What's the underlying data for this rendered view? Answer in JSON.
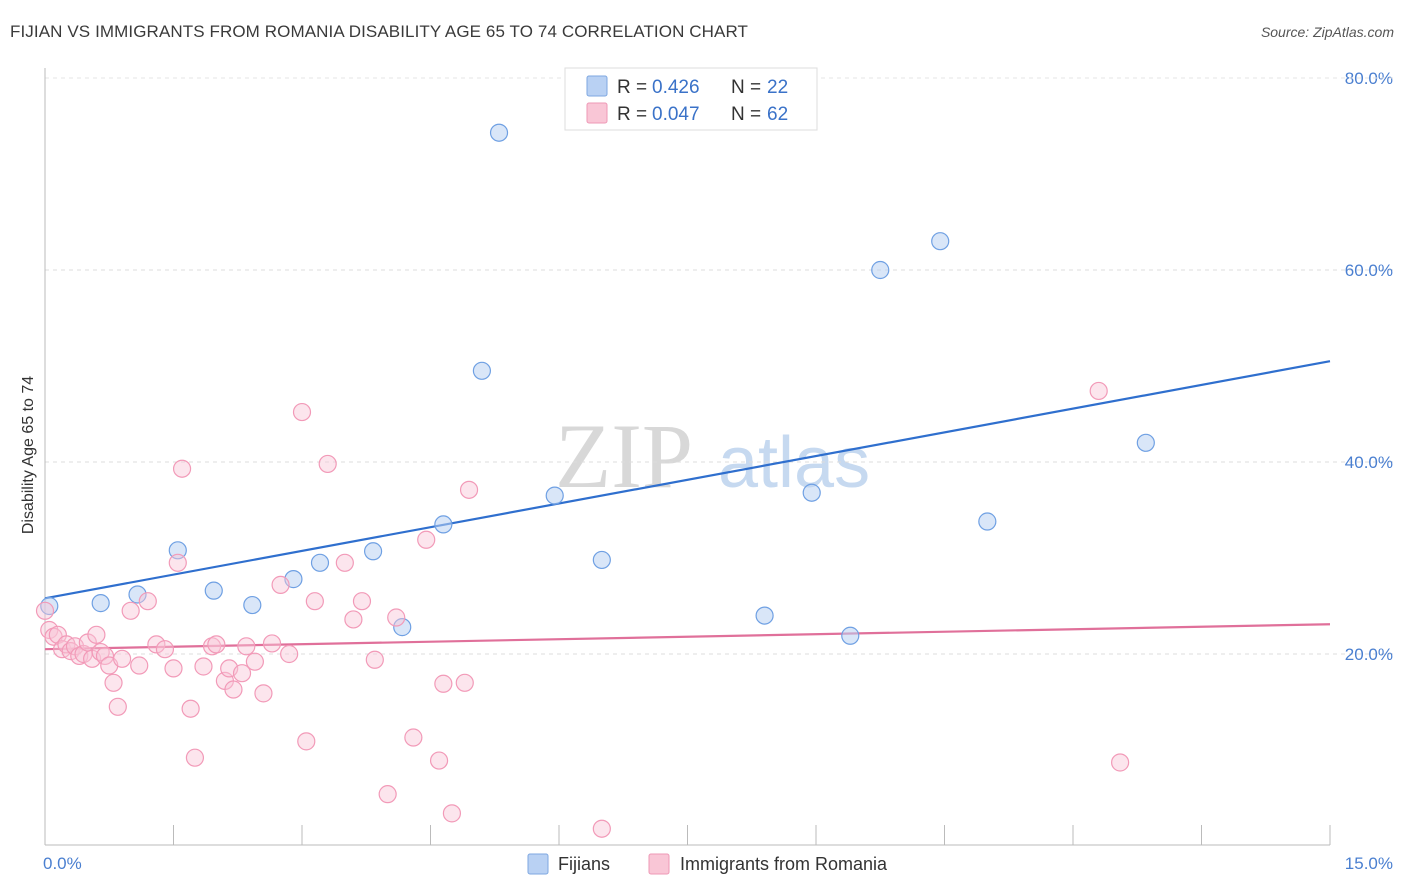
{
  "header": {
    "title": "FIJIAN VS IMMIGRANTS FROM ROMANIA DISABILITY AGE 65 TO 74 CORRELATION CHART",
    "source": "Source: ZipAtlas.com"
  },
  "watermark": {
    "zip": "ZIP",
    "atlas": "atlas"
  },
  "legend": {
    "r_label": "R =",
    "n_label": "N =",
    "rows": [
      {
        "r": "0.426",
        "n": "22"
      },
      {
        "r": "0.047",
        "n": "62"
      }
    ]
  },
  "bottom_legend": [
    "Fijians",
    "Immigrants from Romania"
  ],
  "chart_data": {
    "type": "scatter",
    "title": "FIJIAN VS IMMIGRANTS FROM ROMANIA DISABILITY AGE 65 TO 74 CORRELATION CHART",
    "ylabel": "Disability Age 65 to 74",
    "xlabel": "",
    "xlim": [
      0,
      15
    ],
    "ylim": [
      0,
      82
    ],
    "x_tick_labels": [
      "0.0%",
      "15.0%"
    ],
    "y_ticks": [
      20,
      40,
      60,
      80
    ],
    "y_tick_labels": [
      "20.0%",
      "40.0%",
      "60.0%",
      "80.0%"
    ],
    "grid": true,
    "colors": {
      "fijians": "#6fa0e3",
      "romania": "#f29ab8",
      "fijians_line": "#2f6fce",
      "romania_line": "#e0709a"
    },
    "series": [
      {
        "name": "Fijians",
        "r": 0.426,
        "n": 22,
        "trend": [
          [
            0,
            25.8
          ],
          [
            15,
            50.5
          ]
        ],
        "points": [
          [
            0.05,
            25.0
          ],
          [
            0.65,
            25.3
          ],
          [
            1.08,
            26.2
          ],
          [
            1.55,
            30.8
          ],
          [
            1.97,
            26.6
          ],
          [
            2.42,
            25.1
          ],
          [
            2.9,
            27.8
          ],
          [
            3.21,
            29.5
          ],
          [
            3.83,
            30.7
          ],
          [
            4.17,
            22.8
          ],
          [
            4.65,
            33.5
          ],
          [
            5.1,
            49.5
          ],
          [
            5.3,
            74.3
          ],
          [
            5.95,
            36.5
          ],
          [
            6.5,
            29.8
          ],
          [
            8.4,
            24.0
          ],
          [
            8.95,
            36.8
          ],
          [
            9.4,
            21.9
          ],
          [
            9.75,
            60.0
          ],
          [
            10.45,
            63.0
          ],
          [
            11.0,
            33.8
          ],
          [
            12.85,
            42.0
          ]
        ]
      },
      {
        "name": "Immigrants from Romania",
        "r": 0.047,
        "n": 62,
        "trend": [
          [
            0,
            20.5
          ],
          [
            15,
            23.1
          ]
        ],
        "points": [
          [
            0.0,
            24.5
          ],
          [
            0.05,
            22.5
          ],
          [
            0.1,
            21.8
          ],
          [
            0.15,
            22.0
          ],
          [
            0.2,
            20.5
          ],
          [
            0.25,
            21.0
          ],
          [
            0.3,
            20.3
          ],
          [
            0.35,
            20.8
          ],
          [
            0.4,
            19.8
          ],
          [
            0.45,
            20.0
          ],
          [
            0.5,
            21.2
          ],
          [
            0.55,
            19.5
          ],
          [
            0.6,
            22.0
          ],
          [
            0.65,
            20.2
          ],
          [
            0.7,
            19.8
          ],
          [
            0.75,
            18.8
          ],
          [
            0.8,
            17.0
          ],
          [
            0.85,
            14.5
          ],
          [
            0.9,
            19.5
          ],
          [
            1.0,
            24.5
          ],
          [
            1.1,
            18.8
          ],
          [
            1.2,
            25.5
          ],
          [
            1.3,
            21.0
          ],
          [
            1.4,
            20.5
          ],
          [
            1.5,
            18.5
          ],
          [
            1.55,
            29.5
          ],
          [
            1.6,
            39.3
          ],
          [
            1.7,
            14.3
          ],
          [
            1.75,
            9.2
          ],
          [
            1.85,
            18.7
          ],
          [
            1.95,
            20.8
          ],
          [
            2.0,
            21.0
          ],
          [
            2.1,
            17.2
          ],
          [
            2.15,
            18.5
          ],
          [
            2.2,
            16.3
          ],
          [
            2.3,
            18.0
          ],
          [
            2.35,
            20.8
          ],
          [
            2.45,
            19.2
          ],
          [
            2.55,
            15.9
          ],
          [
            2.65,
            21.1
          ],
          [
            2.75,
            27.2
          ],
          [
            2.85,
            20.0
          ],
          [
            3.0,
            45.2
          ],
          [
            3.05,
            10.9
          ],
          [
            3.15,
            25.5
          ],
          [
            3.3,
            39.8
          ],
          [
            3.5,
            29.5
          ],
          [
            3.6,
            23.6
          ],
          [
            3.7,
            25.5
          ],
          [
            3.85,
            19.4
          ],
          [
            4.0,
            5.4
          ],
          [
            4.1,
            23.8
          ],
          [
            4.3,
            11.3
          ],
          [
            4.45,
            31.9
          ],
          [
            4.6,
            8.9
          ],
          [
            4.65,
            16.9
          ],
          [
            4.75,
            3.4
          ],
          [
            4.9,
            17.0
          ],
          [
            4.95,
            37.1
          ],
          [
            6.5,
            1.8
          ],
          [
            12.3,
            47.4
          ],
          [
            12.55,
            8.7
          ]
        ]
      }
    ]
  }
}
